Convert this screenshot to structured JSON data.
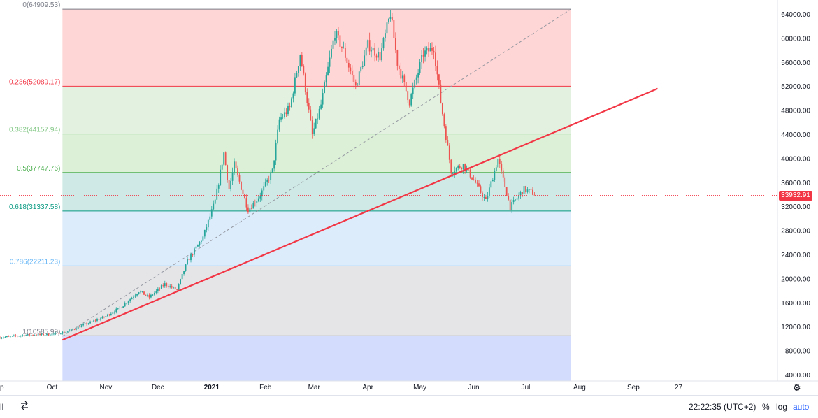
{
  "chart_data": {
    "type": "candlestick",
    "price_axis": {
      "min": 3000,
      "max": 66500,
      "ticks": [
        4000,
        8000,
        12000,
        16000,
        20000,
        24000,
        28000,
        32000,
        36000,
        40000,
        44000,
        48000,
        52000,
        56000,
        60000,
        64000
      ],
      "tick_labels": [
        "4000.00",
        "8000.00",
        "12000.00",
        "16000.00",
        "20000.00",
        "24000.00",
        "28000.00",
        "32000.00",
        "36000.00",
        "40000.00",
        "44000.00",
        "48000.00",
        "52000.00",
        "56000.00",
        "60000.00",
        "64000.00"
      ]
    },
    "time_axis": {
      "start": "2020-09-01",
      "end": "2021-10-01",
      "ticks": [
        {
          "date": "2020-09-01",
          "label": "p",
          "year": false
        },
        {
          "date": "2020-10-01",
          "label": "Oct",
          "year": false
        },
        {
          "date": "2020-11-01",
          "label": "Nov",
          "year": false
        },
        {
          "date": "2020-12-01",
          "label": "Dec",
          "year": false
        },
        {
          "date": "2021-01-01",
          "label": "2021",
          "year": true
        },
        {
          "date": "2021-02-01",
          "label": "Feb",
          "year": false
        },
        {
          "date": "2021-03-01",
          "label": "Mar",
          "year": false
        },
        {
          "date": "2021-04-01",
          "label": "Apr",
          "year": false
        },
        {
          "date": "2021-05-01",
          "label": "May",
          "year": false
        },
        {
          "date": "2021-06-01",
          "label": "Jun",
          "year": false
        },
        {
          "date": "2021-07-01",
          "label": "Jul",
          "year": false
        },
        {
          "date": "2021-08-01",
          "label": "Aug",
          "year": false
        },
        {
          "date": "2021-09-01",
          "label": "Sep",
          "year": false
        },
        {
          "date": "2021-09-27",
          "label": "27",
          "year": false
        }
      ]
    },
    "price_path": [
      [
        "2020-09-01",
        10300
      ],
      [
        "2020-09-15",
        10700
      ],
      [
        "2020-09-30",
        10800
      ],
      [
        "2020-10-10",
        11300
      ],
      [
        "2020-10-20",
        12500
      ],
      [
        "2020-10-31",
        13700
      ],
      [
        "2020-11-10",
        15400
      ],
      [
        "2020-11-20",
        18000
      ],
      [
        "2020-11-26",
        17000
      ],
      [
        "2020-12-05",
        19200
      ],
      [
        "2020-12-12",
        18200
      ],
      [
        "2020-12-18",
        23000
      ],
      [
        "2020-12-27",
        27000
      ],
      [
        "2021-01-03",
        33000
      ],
      [
        "2021-01-08",
        41000
      ],
      [
        "2021-01-11",
        35000
      ],
      [
        "2021-01-14",
        39000
      ],
      [
        "2021-01-22",
        31500
      ],
      [
        "2021-01-29",
        34000
      ],
      [
        "2021-02-05",
        38000
      ],
      [
        "2021-02-09",
        46500
      ],
      [
        "2021-02-15",
        48500
      ],
      [
        "2021-02-21",
        57500
      ],
      [
        "2021-02-28",
        44000
      ],
      [
        "2021-03-05",
        49000
      ],
      [
        "2021-03-13",
        61000
      ],
      [
        "2021-03-18",
        58000
      ],
      [
        "2021-03-25",
        52000
      ],
      [
        "2021-04-01",
        59000
      ],
      [
        "2021-04-08",
        57000
      ],
      [
        "2021-04-14",
        64200
      ],
      [
        "2021-04-18",
        56000
      ],
      [
        "2021-04-25",
        49500
      ],
      [
        "2021-05-03",
        57500
      ],
      [
        "2021-05-09",
        58500
      ],
      [
        "2021-05-13",
        49500
      ],
      [
        "2021-05-19",
        38000
      ],
      [
        "2021-05-26",
        39000
      ],
      [
        "2021-06-01",
        36500
      ],
      [
        "2021-06-08",
        33000
      ],
      [
        "2021-06-15",
        40000
      ],
      [
        "2021-06-22",
        32000
      ],
      [
        "2021-06-30",
        35000
      ],
      [
        "2021-07-06",
        34200
      ]
    ],
    "fibonacci": {
      "levels": [
        {
          "ratio": "0",
          "price": 64909.53,
          "label": "0(64909.53)",
          "line": "#787b86",
          "fill": "#ffd6d6",
          "text": "#787b86"
        },
        {
          "ratio": "0.236",
          "price": 52089.17,
          "label": "0.236(52089.17)",
          "line": "#f23645",
          "fill": "#e3f1e1",
          "text": "#f23645"
        },
        {
          "ratio": "0.382",
          "price": 44157.94,
          "label": "0.382(44157.94)",
          "line": "#81c784",
          "fill": "#dcefd7",
          "text": "#81c784"
        },
        {
          "ratio": "0.5",
          "price": 37747.76,
          "label": "0.5(37747.76)",
          "line": "#4caf50",
          "fill": "#cfeae6",
          "text": "#4caf50"
        },
        {
          "ratio": "0.618",
          "price": 31337.58,
          "label": "0.618(31337.58)",
          "line": "#089981",
          "fill": "#dcecfb",
          "text": "#089981"
        },
        {
          "ratio": "0.786",
          "price": 22211.23,
          "label": "0.786(22211.23)",
          "line": "#64b5f6",
          "fill": "#e5e5e8",
          "text": "#64b5f6"
        },
        {
          "ratio": "1",
          "price": 10585.99,
          "label": "1(10585.99)",
          "line": "#787b86",
          "fill": "#d3dcfd",
          "text": "#787b86"
        }
      ],
      "start_date": "2020-10-07",
      "end_date": "2021-07-27",
      "bottom_extension_price": 3000
    },
    "trend_line": {
      "color": "#f23645",
      "from": [
        "2020-10-07",
        9900
      ],
      "to": [
        "2021-09-15",
        51700
      ]
    },
    "dashed_line": {
      "color": "#9598a1",
      "from": [
        "2020-10-07",
        10500
      ],
      "to": [
        "2021-07-27",
        64900
      ]
    },
    "last_price": {
      "value": 33932.91,
      "label": "33932.91",
      "color": "#f23645"
    }
  },
  "toolbar": {
    "left_label": "ll",
    "compare_icon": "compare-icon",
    "clock": "22:22:35 (UTC+2)",
    "percent": "%",
    "log": "log",
    "auto": "auto"
  },
  "icons": {
    "settings": "gear-icon"
  },
  "colors": {
    "up": "#26a69a",
    "down": "#ef5350"
  }
}
